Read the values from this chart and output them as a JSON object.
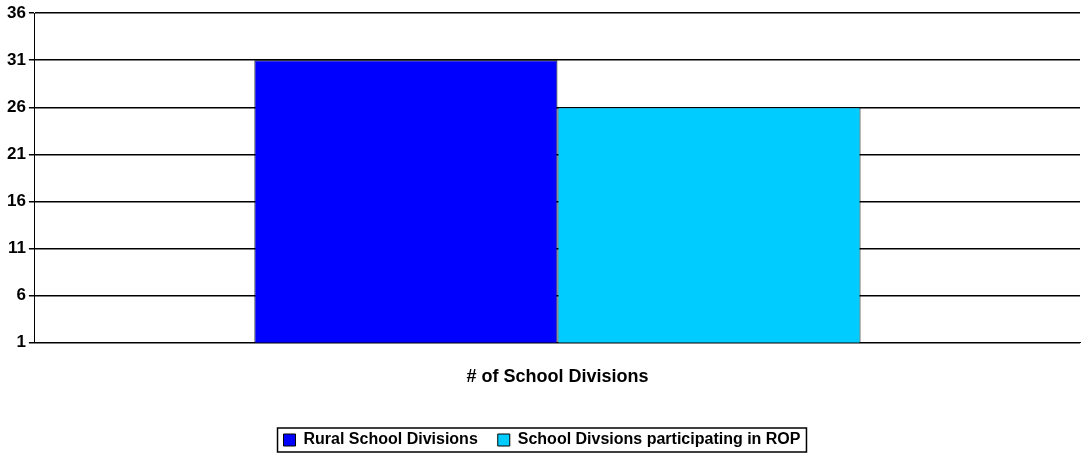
{
  "chart_data": {
    "type": "bar",
    "categories": [
      "# of School Divisions"
    ],
    "series": [
      {
        "name": "Rural School Divisions",
        "color": "#0000ff",
        "values": [
          31
        ]
      },
      {
        "name": "School Divsions participating in ROP",
        "color": "#00ccff",
        "values": [
          26
        ]
      }
    ],
    "ylim": [
      1,
      36
    ],
    "yticks": [
      1,
      6,
      11,
      16,
      21,
      26,
      31,
      36
    ],
    "grid": "y",
    "legend": "bottom"
  }
}
